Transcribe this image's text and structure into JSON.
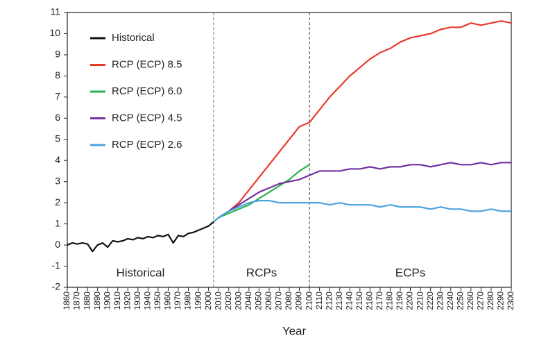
{
  "chart_data": {
    "type": "line",
    "x_label": "Year",
    "xlim": [
      1860,
      2300
    ],
    "ylim": [
      -2,
      11
    ],
    "xticks": [
      1860,
      1870,
      1880,
      1890,
      1900,
      1910,
      1920,
      1930,
      1940,
      1950,
      1960,
      1970,
      1980,
      1990,
      2000,
      2010,
      2020,
      2030,
      2040,
      2050,
      2060,
      2070,
      2080,
      2090,
      2100,
      2110,
      2120,
      2130,
      2140,
      2150,
      2160,
      2170,
      2180,
      2190,
      2200,
      2210,
      2220,
      2230,
      2240,
      2250,
      2260,
      2270,
      2280,
      2290,
      2300
    ],
    "yticks": [
      -2,
      -1,
      0,
      1,
      2,
      3,
      4,
      5,
      6,
      7,
      8,
      9,
      10,
      11
    ],
    "dividers": [
      2005,
      2100
    ],
    "regions": [
      "Historical",
      "RCPs",
      "ECPs"
    ],
    "legend": "upper left",
    "series": [
      {
        "name": "Historical",
        "color": "#111111",
        "x": [
          1860,
          1865,
          1870,
          1875,
          1880,
          1885,
          1890,
          1895,
          1900,
          1905,
          1910,
          1915,
          1920,
          1925,
          1930,
          1935,
          1940,
          1945,
          1950,
          1955,
          1960,
          1965,
          1970,
          1975,
          1980,
          1985,
          1990,
          1995,
          2000,
          2005
        ],
        "values": [
          0.0,
          0.1,
          0.05,
          0.1,
          0.05,
          -0.3,
          0.0,
          0.1,
          -0.1,
          0.2,
          0.15,
          0.2,
          0.3,
          0.25,
          0.35,
          0.3,
          0.4,
          0.35,
          0.45,
          0.4,
          0.5,
          0.1,
          0.45,
          0.4,
          0.55,
          0.6,
          0.7,
          0.8,
          0.9,
          1.1
        ]
      },
      {
        "name": "RCP (ECP) 8.5",
        "color": "#e8392a",
        "x": [
          2005,
          2010,
          2020,
          2030,
          2040,
          2050,
          2060,
          2070,
          2080,
          2090,
          2100,
          2110,
          2120,
          2130,
          2140,
          2150,
          2160,
          2170,
          2180,
          2190,
          2200,
          2210,
          2220,
          2230,
          2240,
          2250,
          2260,
          2270,
          2280,
          2290,
          2300
        ],
        "values": [
          1.1,
          1.3,
          1.6,
          2.0,
          2.6,
          3.2,
          3.8,
          4.4,
          5.0,
          5.6,
          5.8,
          6.4,
          7.0,
          7.5,
          8.0,
          8.4,
          8.8,
          9.1,
          9.3,
          9.6,
          9.8,
          9.9,
          10.0,
          10.2,
          10.3,
          10.3,
          10.5,
          10.4,
          10.5,
          10.6,
          10.5
        ]
      },
      {
        "name": "RCP (ECP) 6.0",
        "color": "#2bb24c",
        "x": [
          2005,
          2010,
          2020,
          2030,
          2040,
          2050,
          2060,
          2070,
          2080,
          2090,
          2100
        ],
        "values": [
          1.1,
          1.3,
          1.5,
          1.7,
          1.9,
          2.2,
          2.5,
          2.8,
          3.1,
          3.5,
          3.8
        ]
      },
      {
        "name": "RCP (ECP) 4.5",
        "color": "#7030a0",
        "x": [
          2005,
          2010,
          2020,
          2030,
          2040,
          2050,
          2060,
          2070,
          2080,
          2090,
          2100,
          2110,
          2120,
          2130,
          2140,
          2150,
          2160,
          2170,
          2180,
          2190,
          2200,
          2210,
          2220,
          2230,
          2240,
          2250,
          2260,
          2270,
          2280,
          2290,
          2300
        ],
        "values": [
          1.1,
          1.3,
          1.6,
          1.9,
          2.2,
          2.5,
          2.7,
          2.9,
          3.0,
          3.1,
          3.3,
          3.5,
          3.5,
          3.5,
          3.6,
          3.6,
          3.7,
          3.6,
          3.7,
          3.7,
          3.8,
          3.8,
          3.7,
          3.8,
          3.9,
          3.8,
          3.8,
          3.9,
          3.8,
          3.9,
          3.9
        ]
      },
      {
        "name": "RCP (ECP) 2.6",
        "color": "#4aa3df",
        "x": [
          2005,
          2010,
          2020,
          2030,
          2040,
          2050,
          2060,
          2070,
          2080,
          2090,
          2100,
          2110,
          2120,
          2130,
          2140,
          2150,
          2160,
          2170,
          2180,
          2190,
          2200,
          2210,
          2220,
          2230,
          2240,
          2250,
          2260,
          2270,
          2280,
          2290,
          2300
        ],
        "values": [
          1.1,
          1.3,
          1.6,
          1.8,
          2.0,
          2.1,
          2.1,
          2.0,
          2.0,
          2.0,
          2.0,
          2.0,
          1.9,
          2.0,
          1.9,
          1.9,
          1.9,
          1.8,
          1.9,
          1.8,
          1.8,
          1.8,
          1.7,
          1.8,
          1.7,
          1.7,
          1.6,
          1.6,
          1.7,
          1.6,
          1.6
        ]
      }
    ]
  }
}
